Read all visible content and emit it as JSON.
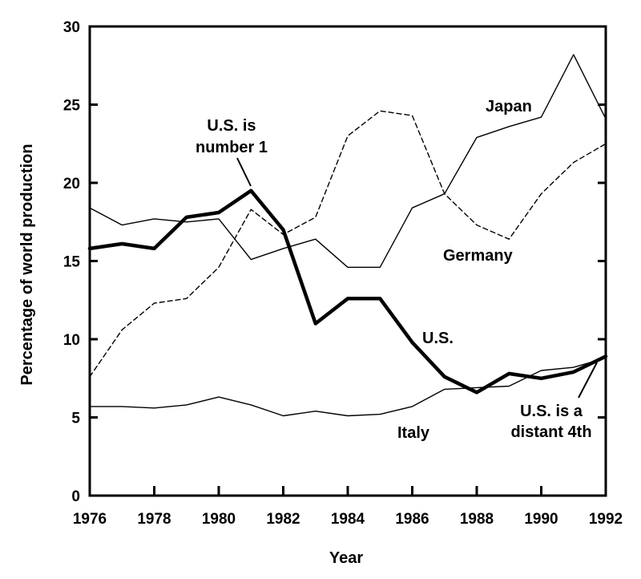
{
  "chart_data": {
    "type": "line",
    "title": "",
    "xlabel": "Year",
    "ylabel": "Percentage of world production",
    "xlim": [
      1976,
      1992
    ],
    "ylim": [
      0,
      30
    ],
    "grid": false,
    "x_ticks": [
      1976,
      1978,
      1980,
      1982,
      1984,
      1986,
      1988,
      1990,
      1992
    ],
    "y_ticks": [
      0,
      5,
      10,
      15,
      20,
      25,
      30
    ],
    "series": [
      {
        "name": "U.S.",
        "style": "thick-solid",
        "x": [
          1976,
          1977,
          1978,
          1979,
          1980,
          1981,
          1982,
          1983,
          1984,
          1985,
          1986,
          1987,
          1988,
          1989,
          1990,
          1991,
          1992
        ],
        "values": [
          15.8,
          16.1,
          15.8,
          17.8,
          18.1,
          19.5,
          17.0,
          11.0,
          12.6,
          12.6,
          9.8,
          7.6,
          6.6,
          7.8,
          7.5,
          7.9,
          8.9
        ]
      },
      {
        "name": "Japan",
        "style": "thin-solid",
        "x": [
          1976,
          1977,
          1978,
          1979,
          1980,
          1981,
          1982,
          1983,
          1984,
          1985,
          1986,
          1987,
          1988,
          1989,
          1990,
          1991,
          1992
        ],
        "values": [
          18.4,
          17.3,
          17.7,
          17.5,
          17.7,
          15.1,
          15.8,
          16.4,
          14.6,
          14.6,
          18.4,
          19.3,
          22.9,
          23.6,
          24.2,
          28.2,
          24.1
        ]
      },
      {
        "name": "Germany",
        "style": "dashed",
        "x": [
          1976,
          1977,
          1978,
          1979,
          1980,
          1981,
          1982,
          1983,
          1984,
          1985,
          1986,
          1987,
          1988,
          1989,
          1990,
          1991,
          1992
        ],
        "values": [
          7.6,
          10.6,
          12.3,
          12.6,
          14.6,
          18.3,
          16.7,
          17.8,
          23.0,
          24.6,
          24.3,
          19.3,
          17.3,
          16.4,
          19.3,
          21.3,
          22.5
        ]
      },
      {
        "name": "Italy",
        "style": "thin-solid",
        "x": [
          1976,
          1977,
          1978,
          1979,
          1980,
          1981,
          1982,
          1983,
          1984,
          1985,
          1986,
          1987,
          1988,
          1989,
          1990,
          1991,
          1992
        ],
        "values": [
          5.7,
          5.7,
          5.6,
          5.8,
          6.3,
          5.8,
          5.1,
          5.4,
          5.1,
          5.2,
          5.7,
          6.8,
          6.9,
          7.0,
          8.0,
          8.2,
          8.8
        ]
      }
    ],
    "annotations": [
      {
        "line1": "U.S. is",
        "line2": "number 1"
      },
      {
        "line1": "U.S. is a",
        "line2": "distant 4th"
      }
    ]
  }
}
